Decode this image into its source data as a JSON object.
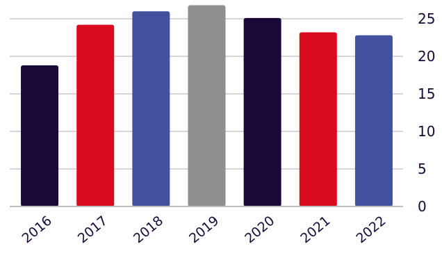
{
  "chart_data": {
    "type": "bar",
    "categories": [
      "2016",
      "2017",
      "2018",
      "2019",
      "2020",
      "2021",
      "2022"
    ],
    "values": [
      18.8,
      24.2,
      26.0,
      26.8,
      25.1,
      23.2,
      22.8
    ],
    "title": "",
    "xlabel": "",
    "ylabel": "",
    "ylim": [
      0,
      27
    ],
    "yticks": [
      "0",
      "5",
      "10",
      "15",
      "20",
      "25"
    ],
    "y_axis_side": "right",
    "x_tick_rotation": "diagonal",
    "grid": true,
    "legend": "none",
    "bar_colors": [
      "#1a0838",
      "#d90a1e",
      "#42519e",
      "#8e8e8e",
      "#1a0838",
      "#d90a1e",
      "#42519e"
    ],
    "text_color": "#1a0838",
    "grid_color": "#bdbdbd"
  }
}
